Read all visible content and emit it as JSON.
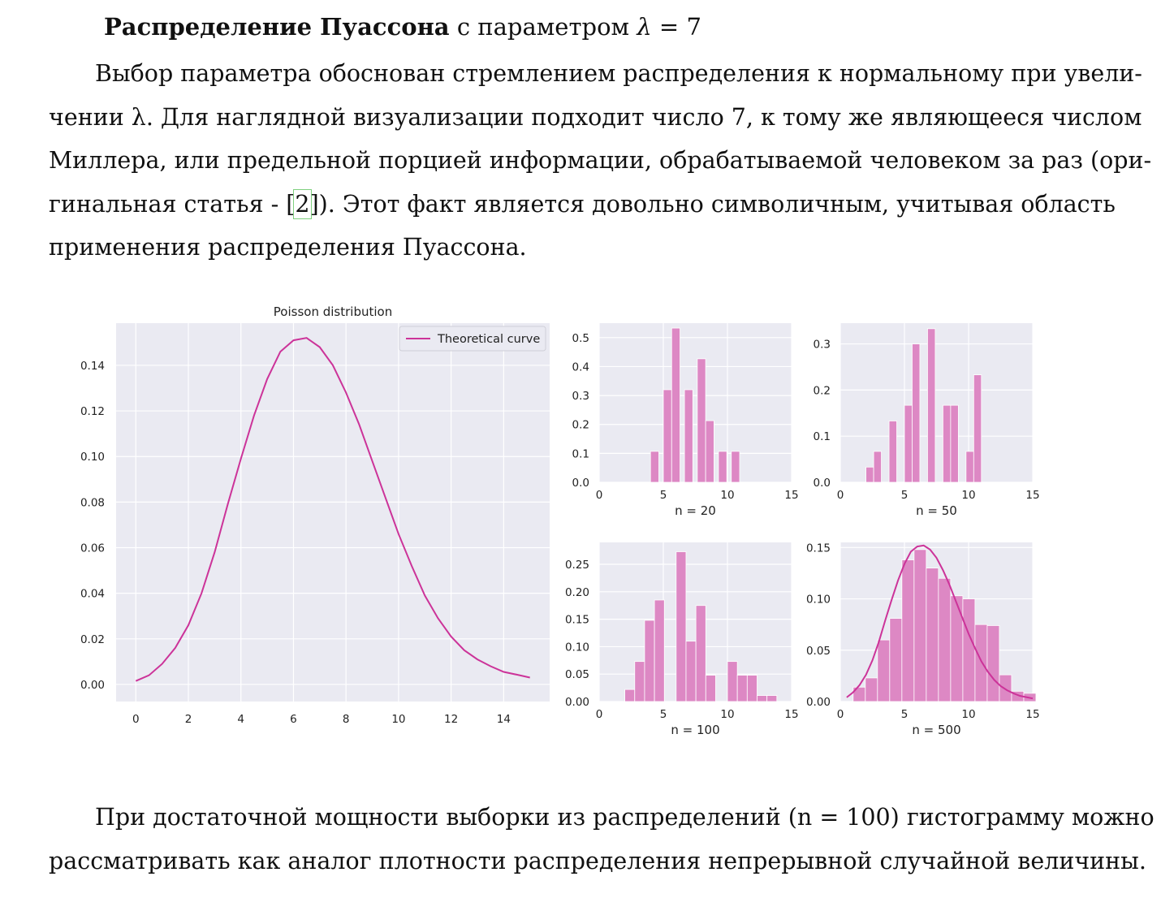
{
  "heading": {
    "bold": "Распределение Пуассона",
    "rest": "с параметром",
    "lambda": "λ",
    "equals": "= 7"
  },
  "paragraph1": {
    "lines": [
      "Выбор параметра обоснован стремлением распределения к нормальному при увели-",
      "чении λ. Для наглядной визуализации подходит число 7, к тому же являющееся числом",
      "Миллера, или предельной порцией информации, обрабатываемой человеком за раз (ори-"
    ],
    "line4_before": "гинальная статья - [",
    "citation": "2",
    "line4_after": "]). Этот факт является довольно символичным, учитывая область",
    "line5": "применения распределения Пуассона."
  },
  "paragraph2": {
    "line1": "При достаточной мощности выборки из распределений (n = 100) гистограмму можно",
    "line2": "рассматривать как аналог плотности распределения непрерывной случайной величины."
  },
  "chart_data": [
    {
      "type": "line",
      "title": "Poisson distribution",
      "legend": "Theoretical curve",
      "legend_position": "top-right",
      "xlim": [
        -0.75,
        15.75
      ],
      "ylim": [
        -0.0075,
        0.1585
      ],
      "xticks": [
        0,
        2,
        4,
        6,
        8,
        10,
        12,
        14
      ],
      "yticks": [
        "0.00",
        "0.02",
        "0.04",
        "0.06",
        "0.08",
        "0.10",
        "0.12",
        "0.14"
      ],
      "x": [
        0,
        0.5,
        1,
        1.5,
        2,
        2.5,
        3,
        3.5,
        4,
        4.5,
        5,
        5.5,
        6,
        6.5,
        7,
        7.5,
        8,
        8.5,
        9,
        9.5,
        10,
        10.5,
        11,
        11.5,
        12,
        12.5,
        13,
        13.5,
        14,
        14.5,
        15
      ],
      "y": [
        0.0015,
        0.004,
        0.009,
        0.016,
        0.026,
        0.04,
        0.058,
        0.079,
        0.099,
        0.118,
        0.134,
        0.146,
        0.151,
        0.152,
        0.148,
        0.14,
        0.128,
        0.114,
        0.098,
        0.082,
        0.066,
        0.052,
        0.039,
        0.029,
        0.021,
        0.015,
        0.011,
        0.008,
        0.0055,
        0.0043,
        0.003
      ],
      "grid": true,
      "color": "#cc3399"
    },
    {
      "type": "bar",
      "xlabel": "n = 20",
      "xlim": [
        0,
        15
      ],
      "ylim": [
        0,
        0.55
      ],
      "xticks": [
        0,
        5,
        10,
        15
      ],
      "yticks": [
        "0.0",
        "0.1",
        "0.2",
        "0.3",
        "0.4",
        "0.5"
      ],
      "bin_width": 0.65,
      "bins": [
        {
          "x": 4.0,
          "value": 0.107
        },
        {
          "x": 5.0,
          "value": 0.32
        },
        {
          "x": 5.65,
          "value": 0.533
        },
        {
          "x": 6.65,
          "value": 0.32
        },
        {
          "x": 7.65,
          "value": 0.427
        },
        {
          "x": 8.3,
          "value": 0.213
        },
        {
          "x": 9.3,
          "value": 0.107
        },
        {
          "x": 10.3,
          "value": 0.107
        }
      ],
      "color": "#cc3399"
    },
    {
      "type": "bar",
      "xlabel": "n = 50",
      "xlim": [
        0,
        15
      ],
      "ylim": [
        0,
        0.345
      ],
      "xticks": [
        0,
        5,
        10,
        15
      ],
      "yticks": [
        "0.0",
        "0.1",
        "0.2",
        "0.3"
      ],
      "bin_width": 0.6,
      "bins": [
        {
          "x": 2.0,
          "value": 0.033
        },
        {
          "x": 2.6,
          "value": 0.067
        },
        {
          "x": 3.8,
          "value": 0.133
        },
        {
          "x": 5.0,
          "value": 0.167
        },
        {
          "x": 5.6,
          "value": 0.3
        },
        {
          "x": 6.8,
          "value": 0.333
        },
        {
          "x": 8.0,
          "value": 0.167
        },
        {
          "x": 8.6,
          "value": 0.167
        },
        {
          "x": 9.8,
          "value": 0.067
        },
        {
          "x": 10.4,
          "value": 0.233
        }
      ],
      "color": "#cc3399"
    },
    {
      "type": "bar",
      "xlabel": "n = 100",
      "xlim": [
        0,
        15
      ],
      "ylim": [
        0,
        0.29
      ],
      "xticks": [
        0,
        5,
        10,
        15
      ],
      "yticks": [
        "0.00",
        "0.05",
        "0.10",
        "0.15",
        "0.20",
        "0.25"
      ],
      "bin_width": 0.77,
      "bins": [
        {
          "x": 2.0,
          "value": 0.022
        },
        {
          "x": 2.77,
          "value": 0.073
        },
        {
          "x": 3.54,
          "value": 0.148
        },
        {
          "x": 4.31,
          "value": 0.185
        },
        {
          "x": 6.0,
          "value": 0.273
        },
        {
          "x": 6.77,
          "value": 0.11
        },
        {
          "x": 7.54,
          "value": 0.175
        },
        {
          "x": 8.31,
          "value": 0.048
        },
        {
          "x": 10.0,
          "value": 0.073
        },
        {
          "x": 10.77,
          "value": 0.048
        },
        {
          "x": 11.54,
          "value": 0.048
        },
        {
          "x": 12.31,
          "value": 0.011
        },
        {
          "x": 13.08,
          "value": 0.011
        }
      ],
      "color": "#cc3399"
    },
    {
      "type": "bar",
      "xlabel": "n = 500",
      "xlim": [
        0,
        15
      ],
      "ylim": [
        0,
        0.155
      ],
      "xticks": [
        0,
        5,
        10,
        15
      ],
      "yticks": [
        "0.00",
        "0.05",
        "0.10",
        "0.15"
      ],
      "bin_width": 0.95,
      "bins": [
        {
          "x": 1.0,
          "value": 0.014
        },
        {
          "x": 1.95,
          "value": 0.023
        },
        {
          "x": 2.9,
          "value": 0.06
        },
        {
          "x": 3.85,
          "value": 0.081
        },
        {
          "x": 4.8,
          "value": 0.138
        },
        {
          "x": 5.75,
          "value": 0.148
        },
        {
          "x": 6.7,
          "value": 0.13
        },
        {
          "x": 7.65,
          "value": 0.12
        },
        {
          "x": 8.6,
          "value": 0.103
        },
        {
          "x": 9.55,
          "value": 0.1
        },
        {
          "x": 10.5,
          "value": 0.075
        },
        {
          "x": 11.45,
          "value": 0.074
        },
        {
          "x": 12.4,
          "value": 0.026
        },
        {
          "x": 13.35,
          "value": 0.01
        },
        {
          "x": 14.3,
          "value": 0.008
        }
      ],
      "overlay_curve": {
        "x": [
          0.5,
          1,
          1.5,
          2,
          2.5,
          3,
          3.5,
          4,
          4.5,
          5,
          5.5,
          6,
          6.5,
          7,
          7.5,
          8,
          8.5,
          9,
          9.5,
          10,
          10.5,
          11,
          11.5,
          12,
          12.5,
          13,
          13.5,
          14,
          14.5,
          15
        ],
        "y": [
          0.004,
          0.009,
          0.016,
          0.026,
          0.04,
          0.058,
          0.079,
          0.099,
          0.118,
          0.134,
          0.146,
          0.151,
          0.152,
          0.148,
          0.14,
          0.128,
          0.114,
          0.098,
          0.082,
          0.066,
          0.052,
          0.039,
          0.029,
          0.021,
          0.015,
          0.011,
          0.008,
          0.0055,
          0.0043,
          0.003
        ]
      },
      "color": "#cc3399"
    }
  ]
}
